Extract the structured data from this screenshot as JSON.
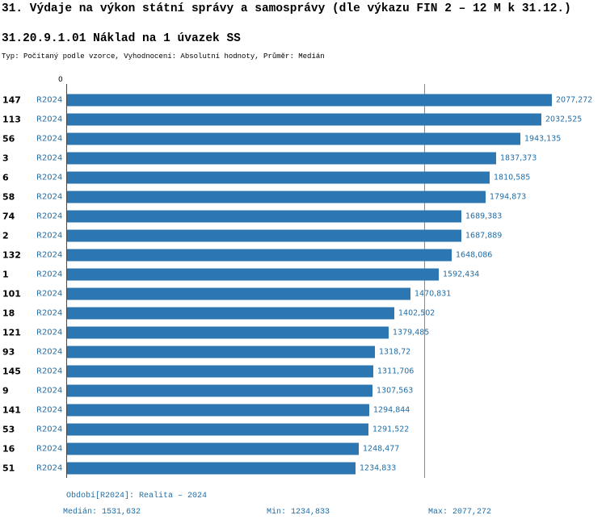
{
  "header": {
    "title": "31. Výdaje na výkon státní správy a samosprávy (dle výkazu FIN 2 – 12 M k 31.12.)",
    "subtitle": "31.20.9.1.01 Náklad na 1 úvazek SS",
    "meta": "Typ: Počítaný podle vzorce, Vyhodnocení: Absolutní hodnoty, Průměr: Medián"
  },
  "chart_data": {
    "type": "bar",
    "orientation": "horizontal",
    "title": "31.20.9.1.01 Náklad na 1 úvazek SS",
    "series_label": "R2024",
    "axis_origin_label": "0",
    "categories": [
      "147",
      "113",
      "56",
      "3",
      "6",
      "58",
      "74",
      "2",
      "132",
      "1",
      "101",
      "18",
      "121",
      "93",
      "145",
      "9",
      "141",
      "53",
      "16",
      "51"
    ],
    "values": [
      2077.272,
      2032.525,
      1943.135,
      1837.373,
      1810.585,
      1794.873,
      1689.383,
      1687.889,
      1648.086,
      1592.434,
      1470.831,
      1402.502,
      1379.485,
      1318.72,
      1311.706,
      1307.563,
      1294.844,
      1291.522,
      1248.477,
      1234.833
    ],
    "value_labels": [
      "2077,272",
      "2032,525",
      "1943,135",
      "1837,373",
      "1810,585",
      "1794,873",
      "1689,383",
      "1687,889",
      "1648,086",
      "1592,434",
      "1470,831",
      "1402,502",
      "1379,485",
      "1318,72",
      "1311,706",
      "1307,563",
      "1294,844",
      "1291,522",
      "1248,477",
      "1234,833"
    ],
    "median_value": 1531.632,
    "xlim": [
      0,
      2077.272
    ],
    "grid": false,
    "legend_position": "none"
  },
  "colors": {
    "bar": "#2c76b2",
    "median_line": "#5e92c4",
    "accent_text": "#1f6da6"
  },
  "footer": {
    "period": "Období[R2024]: Realita – 2024",
    "median": "Medián: 1531,632",
    "min": "Min: 1234,833",
    "max": "Max: 2077,272"
  }
}
